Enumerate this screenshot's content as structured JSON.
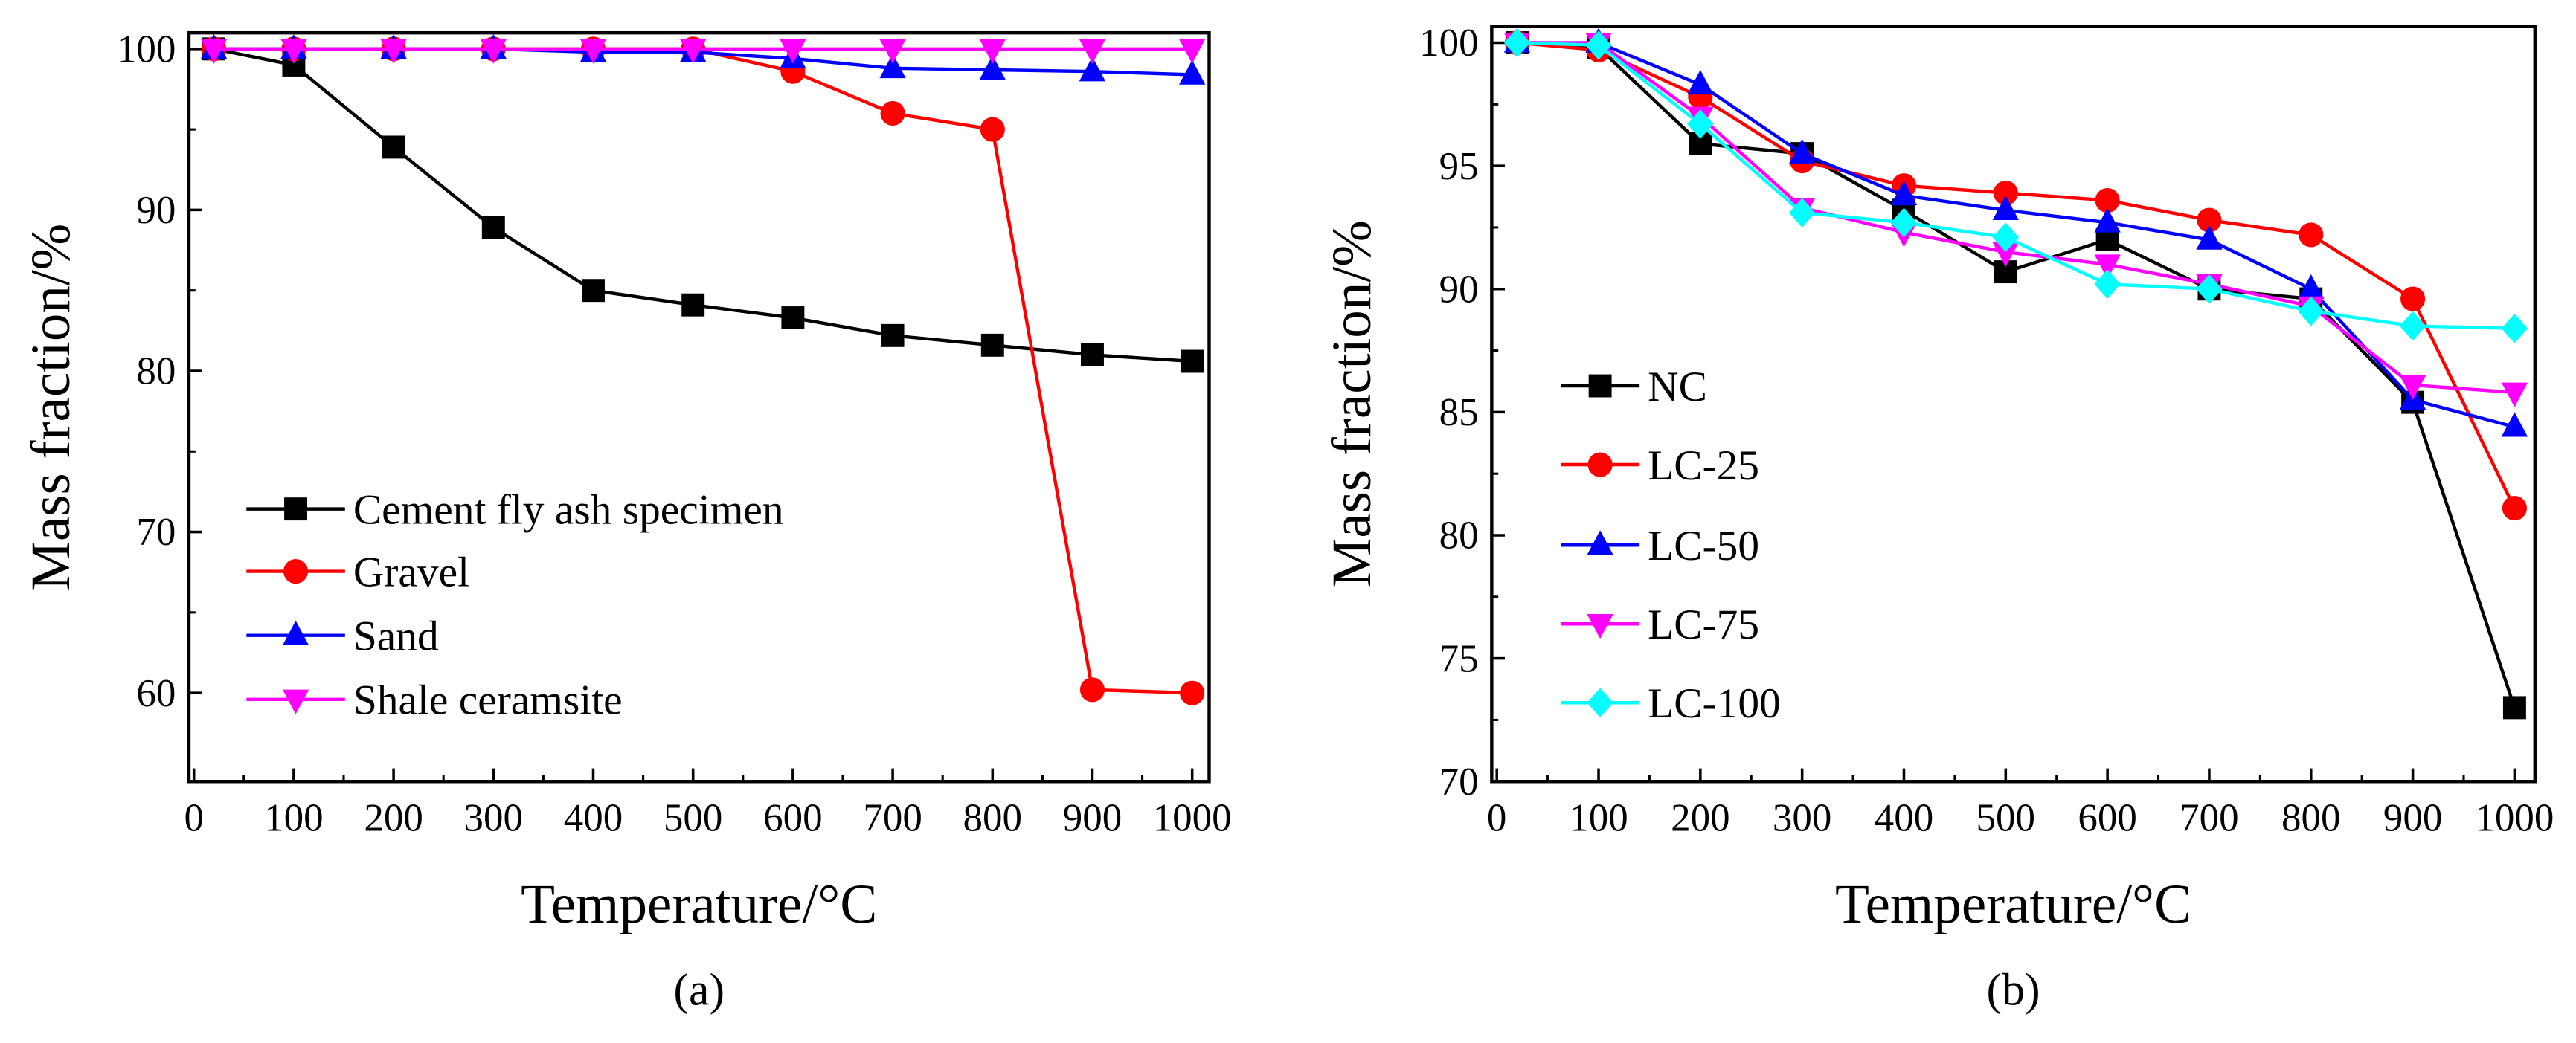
{
  "chart_data": [
    {
      "type": "line",
      "caption": "(a)",
      "xlabel": "Temperature/°C",
      "ylabel": "Mass fraction/%",
      "xlim": [
        -5,
        1017
      ],
      "ylim": [
        54.5,
        101
      ],
      "xticks": [
        0,
        100,
        200,
        300,
        400,
        500,
        600,
        700,
        800,
        900,
        1000
      ],
      "yticks": [
        60,
        70,
        80,
        90,
        100
      ],
      "legend": "bottom-left",
      "x": [
        20,
        100,
        200,
        300,
        400,
        500,
        600,
        700,
        800,
        900,
        1000
      ],
      "series": [
        {
          "name": "Cement fly ash specimen",
          "color": "#000000",
          "marker": "square",
          "values": [
            100,
            99,
            93.9,
            88.9,
            85,
            84.1,
            83.3,
            82.2,
            81.6,
            81,
            80.6
          ]
        },
        {
          "name": "Gravel",
          "color": "#ff0000",
          "marker": "circle",
          "values": [
            100,
            100,
            100,
            100,
            100,
            100,
            98.6,
            96,
            95,
            60.2,
            60
          ]
        },
        {
          "name": "Sand",
          "color": "#0000ff",
          "marker": "triangle-up",
          "values": [
            100,
            100,
            100,
            100,
            99.8,
            99.8,
            99.4,
            98.8,
            98.7,
            98.6,
            98.4
          ]
        },
        {
          "name": "Shale ceramsite",
          "color": "#ff00ff",
          "marker": "triangle-down",
          "values": [
            100,
            100,
            100,
            100,
            100,
            100,
            100,
            100,
            100,
            100,
            100
          ]
        }
      ]
    },
    {
      "type": "line",
      "caption": "(b)",
      "xlabel": "Temperature/°C",
      "ylabel": "Mass fraction/%",
      "xlim": [
        -5,
        1020
      ],
      "ylim": [
        70,
        100.67
      ],
      "xticks": [
        0,
        100,
        200,
        300,
        400,
        500,
        600,
        700,
        800,
        900,
        1000
      ],
      "yticks": [
        70,
        75,
        80,
        85,
        90,
        95,
        100
      ],
      "legend": "bottom-left",
      "x": [
        20,
        100,
        200,
        300,
        400,
        500,
        600,
        700,
        800,
        900,
        1000
      ],
      "series": [
        {
          "name": "NC",
          "color": "#000000",
          "marker": "square",
          "values": [
            100,
            99.8,
            95.9,
            95.5,
            93.2,
            90.7,
            92.0,
            90.0,
            89.6,
            85.4,
            73.0
          ]
        },
        {
          "name": "LC-25",
          "color": "#ff0000",
          "marker": "circle",
          "values": [
            100,
            99.7,
            97.8,
            95.2,
            94.2,
            93.9,
            93.6,
            92.8,
            92.2,
            89.6,
            81.1
          ]
        },
        {
          "name": "LC-50",
          "color": "#0000ff",
          "marker": "triangle-up",
          "values": [
            100,
            100,
            98.3,
            95.5,
            93.8,
            93.2,
            92.7,
            92.0,
            90.0,
            85.5,
            84.4
          ]
        },
        {
          "name": "LC-75",
          "color": "#ff00ff",
          "marker": "triangle-down",
          "values": [
            100,
            100,
            97.0,
            93.3,
            92.3,
            91.5,
            91.0,
            90.2,
            89.3,
            86.1,
            85.8
          ]
        },
        {
          "name": "LC-100",
          "color": "#00ffff",
          "marker": "diamond",
          "values": [
            100,
            99.9,
            96.7,
            93.1,
            92.7,
            92.1,
            90.2,
            90.0,
            89.1,
            88.5,
            88.4
          ]
        }
      ]
    }
  ]
}
